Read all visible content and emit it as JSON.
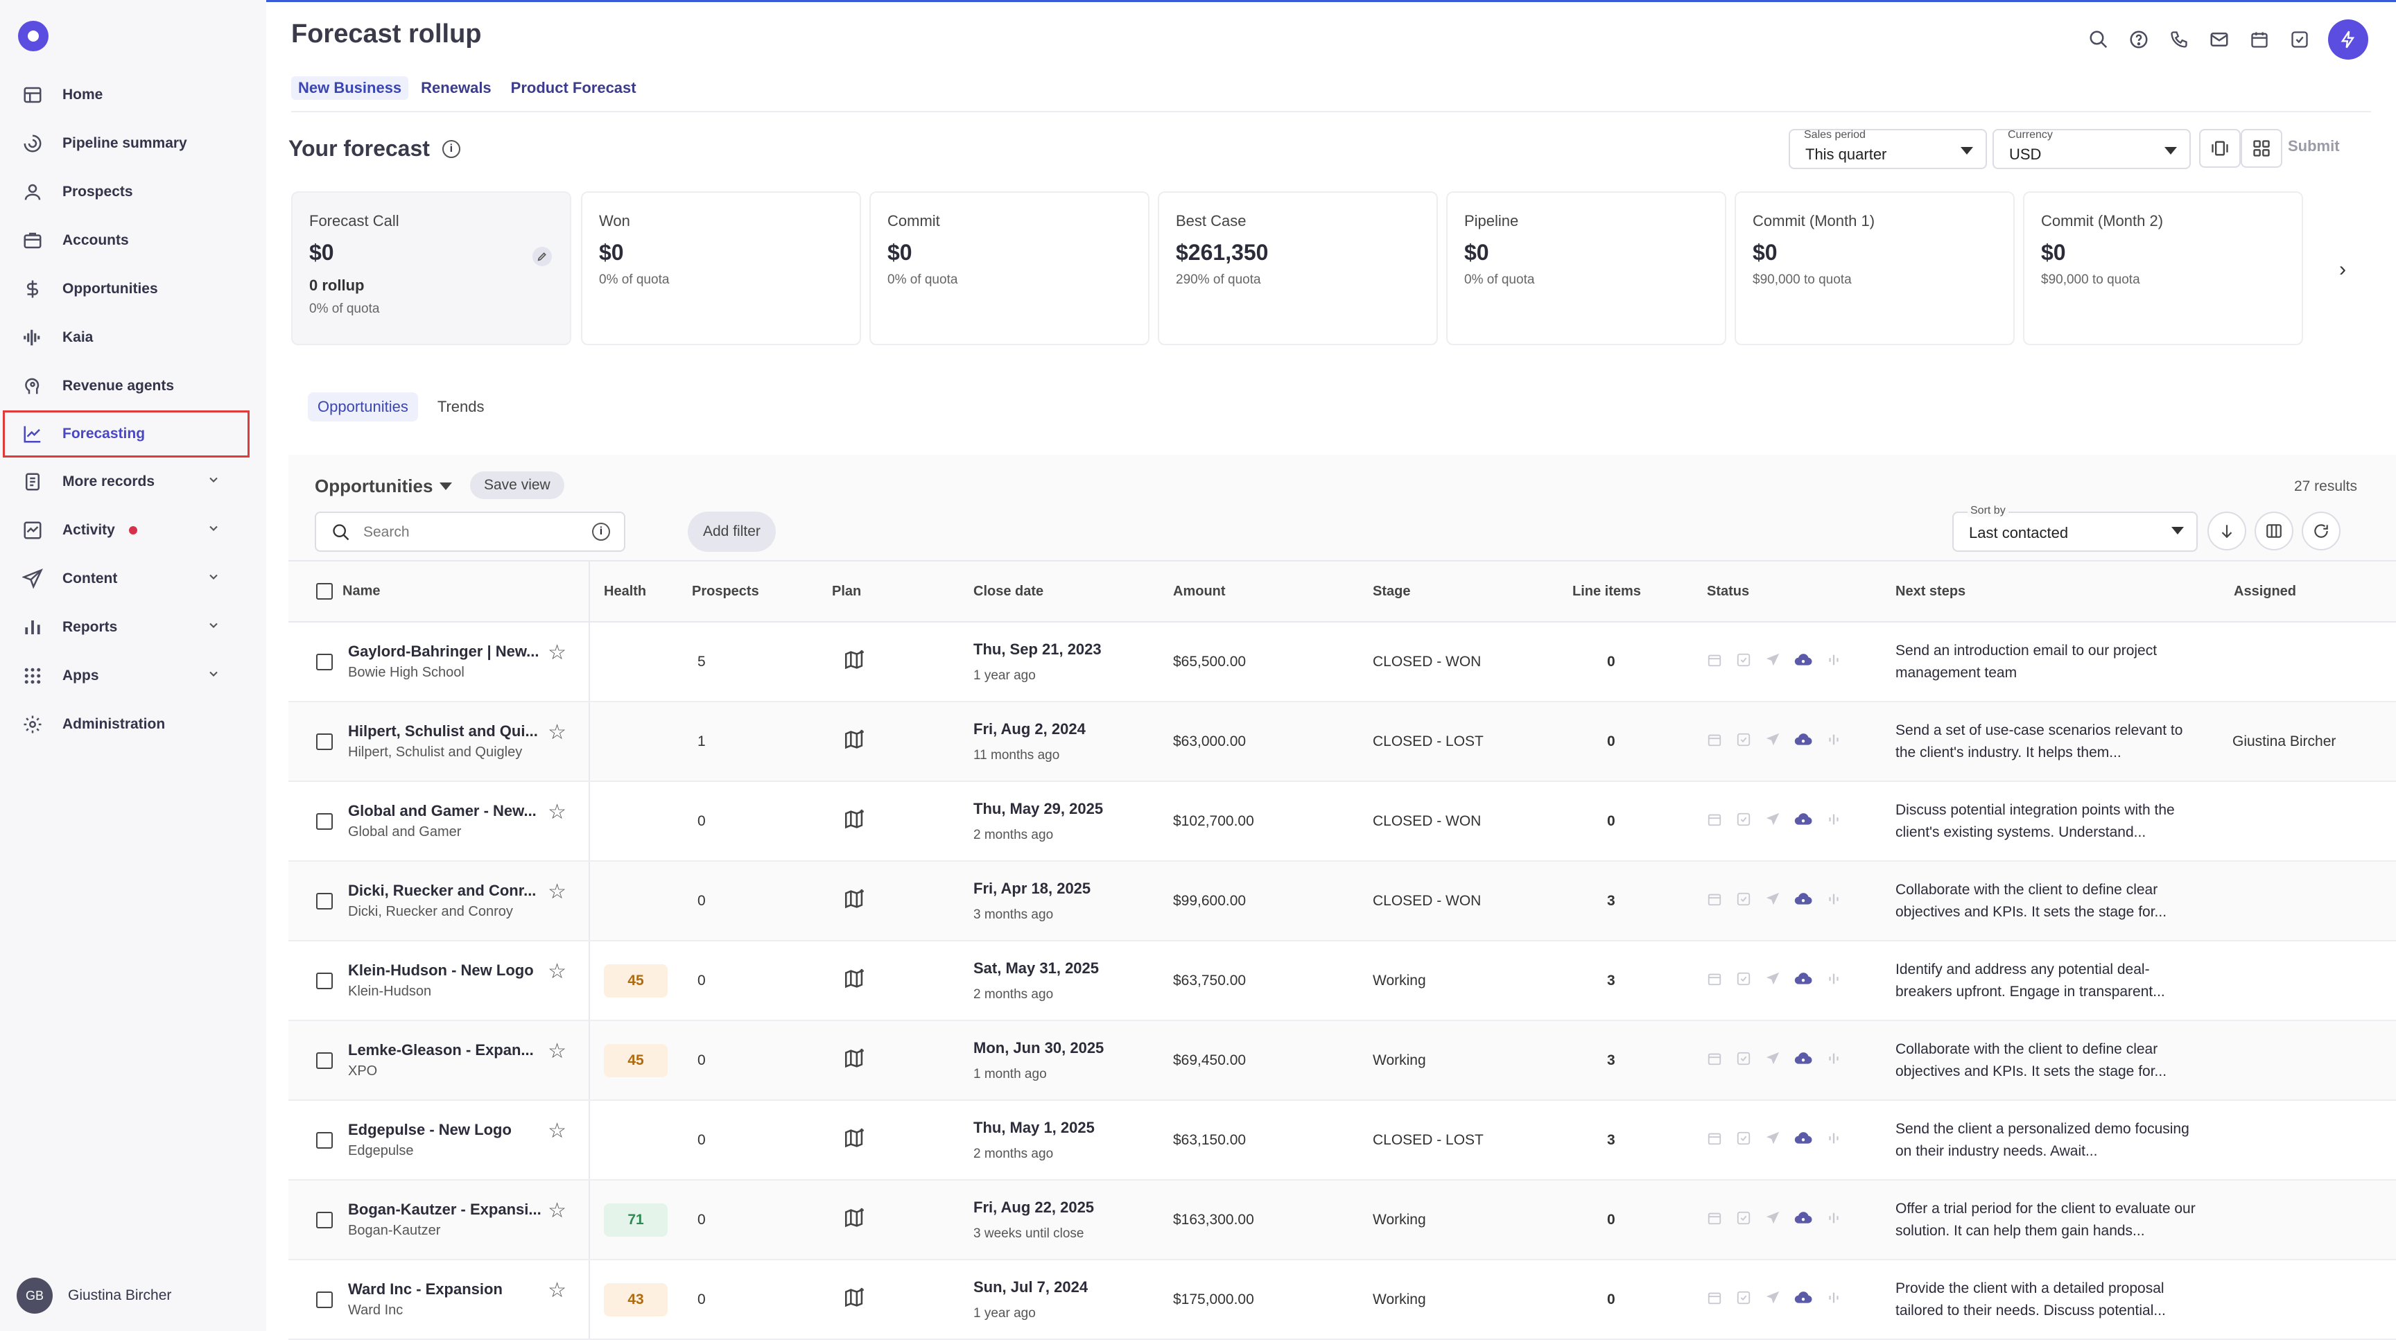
{
  "page": {
    "title": "Forecast rollup"
  },
  "tabs": [
    {
      "label": "New Business"
    },
    {
      "label": "Renewals"
    },
    {
      "label": "Product Forecast"
    }
  ],
  "sidebar": {
    "items": [
      {
        "label": "Home",
        "icon": "table-icon"
      },
      {
        "label": "Pipeline summary",
        "icon": "spiral-icon"
      },
      {
        "label": "Prospects",
        "icon": "person-icon"
      },
      {
        "label": "Accounts",
        "icon": "building-icon"
      },
      {
        "label": "Opportunities",
        "icon": "dollar-icon"
      },
      {
        "label": "Kaia",
        "icon": "waveform-icon"
      },
      {
        "label": "Revenue agents",
        "icon": "head-icon"
      },
      {
        "label": "Forecasting",
        "icon": "chart-line-icon",
        "active": true
      },
      {
        "label": "More records",
        "icon": "document-icon",
        "expandable": true
      },
      {
        "label": "Activity",
        "icon": "activity-icon",
        "expandable": true,
        "notification_dot": true
      },
      {
        "label": "Content",
        "icon": "paper-plane-icon",
        "expandable": true
      },
      {
        "label": "Reports",
        "icon": "bar-chart-icon",
        "expandable": true
      },
      {
        "label": "Apps",
        "icon": "grid-icon",
        "expandable": true
      },
      {
        "label": "Administration",
        "icon": "gear-icon"
      }
    ],
    "user": {
      "initials": "GB",
      "name": "Giustina Bircher"
    }
  },
  "forecast": {
    "heading": "Your forecast",
    "sales_period": {
      "label": "Sales period",
      "value": "This quarter"
    },
    "currency": {
      "label": "Currency",
      "value": "USD"
    },
    "submit_label": "Submit",
    "cards": [
      {
        "title": "Forecast Call",
        "value": "$0",
        "rollup": "0 rollup",
        "sub": "0% of quota"
      },
      {
        "title": "Won",
        "value": "$0",
        "sub": "0% of quota"
      },
      {
        "title": "Commit",
        "value": "$0",
        "sub": "0% of quota"
      },
      {
        "title": "Best Case",
        "value": "$261,350",
        "sub": "290% of quota"
      },
      {
        "title": "Pipeline",
        "value": "$0",
        "sub": "0% of quota"
      },
      {
        "title": "Commit (Month 1)",
        "value": "$0",
        "sub": "$90,000 to quota"
      },
      {
        "title": "Commit (Month 2)",
        "value": "$0",
        "sub": "$90,000 to quota"
      }
    ]
  },
  "subtabs": [
    {
      "label": "Opportunities"
    },
    {
      "label": "Trends"
    }
  ],
  "opps": {
    "title": "Opportunities",
    "save_view": "Save view",
    "results": "27 results",
    "search_placeholder": "Search",
    "add_filter": "Add filter",
    "sort": {
      "label": "Sort by",
      "value": "Last contacted"
    },
    "columns": [
      "Name",
      "Health",
      "Prospects",
      "Plan",
      "Close date",
      "Amount",
      "Stage",
      "Line items",
      "Status",
      "Next steps",
      "Assigned"
    ],
    "rows": [
      {
        "name": "Gaylord-Bahringer | New...",
        "account": "Bowie High School",
        "health": "",
        "prospects": "5",
        "date": "Thu, Sep 21, 2023",
        "rel": "1 year ago",
        "amount": "$65,500.00",
        "stage": "CLOSED - WON",
        "lines": "0",
        "next": "Send an introduction email to our project management team",
        "assigned": ""
      },
      {
        "name": "Hilpert, Schulist and Qui...",
        "account": "Hilpert, Schulist and Quigley",
        "health": "",
        "prospects": "1",
        "date": "Fri, Aug 2, 2024",
        "rel": "11 months ago",
        "amount": "$63,000.00",
        "stage": "CLOSED - LOST",
        "lines": "0",
        "next": "Send a set of use-case scenarios relevant to the client's industry. It helps them...",
        "assigned": "Giustina Bircher"
      },
      {
        "name": "Global and Gamer - New...",
        "account": "Global and Gamer",
        "health": "",
        "prospects": "0",
        "date": "Thu, May 29, 2025",
        "rel": "2 months ago",
        "amount": "$102,700.00",
        "stage": "CLOSED - WON",
        "lines": "0",
        "next": "Discuss potential integration points with the client's existing systems. Understand...",
        "assigned": ""
      },
      {
        "name": "Dicki, Ruecker and Conr...",
        "account": "Dicki, Ruecker and Conroy",
        "health": "",
        "prospects": "0",
        "date": "Fri, Apr 18, 2025",
        "rel": "3 months ago",
        "amount": "$99,600.00",
        "stage": "CLOSED - WON",
        "lines": "3",
        "next": "Collaborate with the client to define clear objectives and KPIs. It sets the stage for...",
        "assigned": ""
      },
      {
        "name": "Klein-Hudson - New Logo",
        "account": "Klein-Hudson",
        "health": "45",
        "health_color": "orange",
        "prospects": "0",
        "date": "Sat, May 31, 2025",
        "rel": "2 months ago",
        "amount": "$63,750.00",
        "stage": "Working",
        "lines": "3",
        "next": "Identify and address any potential deal-breakers upfront. Engage in transparent...",
        "assigned": ""
      },
      {
        "name": "Lemke-Gleason - Expan...",
        "account": "XPO",
        "health": "45",
        "health_color": "orange",
        "prospects": "0",
        "date": "Mon, Jun 30, 2025",
        "rel": "1 month ago",
        "amount": "$69,450.00",
        "stage": "Working",
        "lines": "3",
        "next": "Collaborate with the client to define clear objectives and KPIs. It sets the stage for...",
        "assigned": ""
      },
      {
        "name": "Edgepulse - New Logo",
        "account": "Edgepulse",
        "health": "",
        "prospects": "0",
        "date": "Thu, May 1, 2025",
        "rel": "2 months ago",
        "amount": "$63,150.00",
        "stage": "CLOSED - LOST",
        "lines": "3",
        "next": "Send the client a personalized demo focusing on their industry needs. Await...",
        "assigned": ""
      },
      {
        "name": "Bogan-Kautzer - Expansi...",
        "account": "Bogan-Kautzer",
        "health": "71",
        "health_color": "green",
        "prospects": "0",
        "date": "Fri, Aug 22, 2025",
        "rel": "3 weeks until close",
        "amount": "$163,300.00",
        "stage": "Working",
        "lines": "0",
        "next": "Offer a trial period for the client to evaluate our solution. It can help them gain hands...",
        "assigned": ""
      },
      {
        "name": "Ward Inc - Expansion",
        "account": "Ward Inc",
        "health": "43",
        "health_color": "orange",
        "prospects": "0",
        "date": "Sun, Jul 7, 2024",
        "rel": "1 year ago",
        "amount": "$175,000.00",
        "stage": "Working",
        "lines": "0",
        "next": "Provide the client with a detailed proposal tailored to their needs. Discuss potential...",
        "assigned": ""
      }
    ]
  },
  "colors": {
    "accent": "#5b4de0",
    "active_text": "#4a47c4",
    "highlight_border": "#e03b3b"
  }
}
